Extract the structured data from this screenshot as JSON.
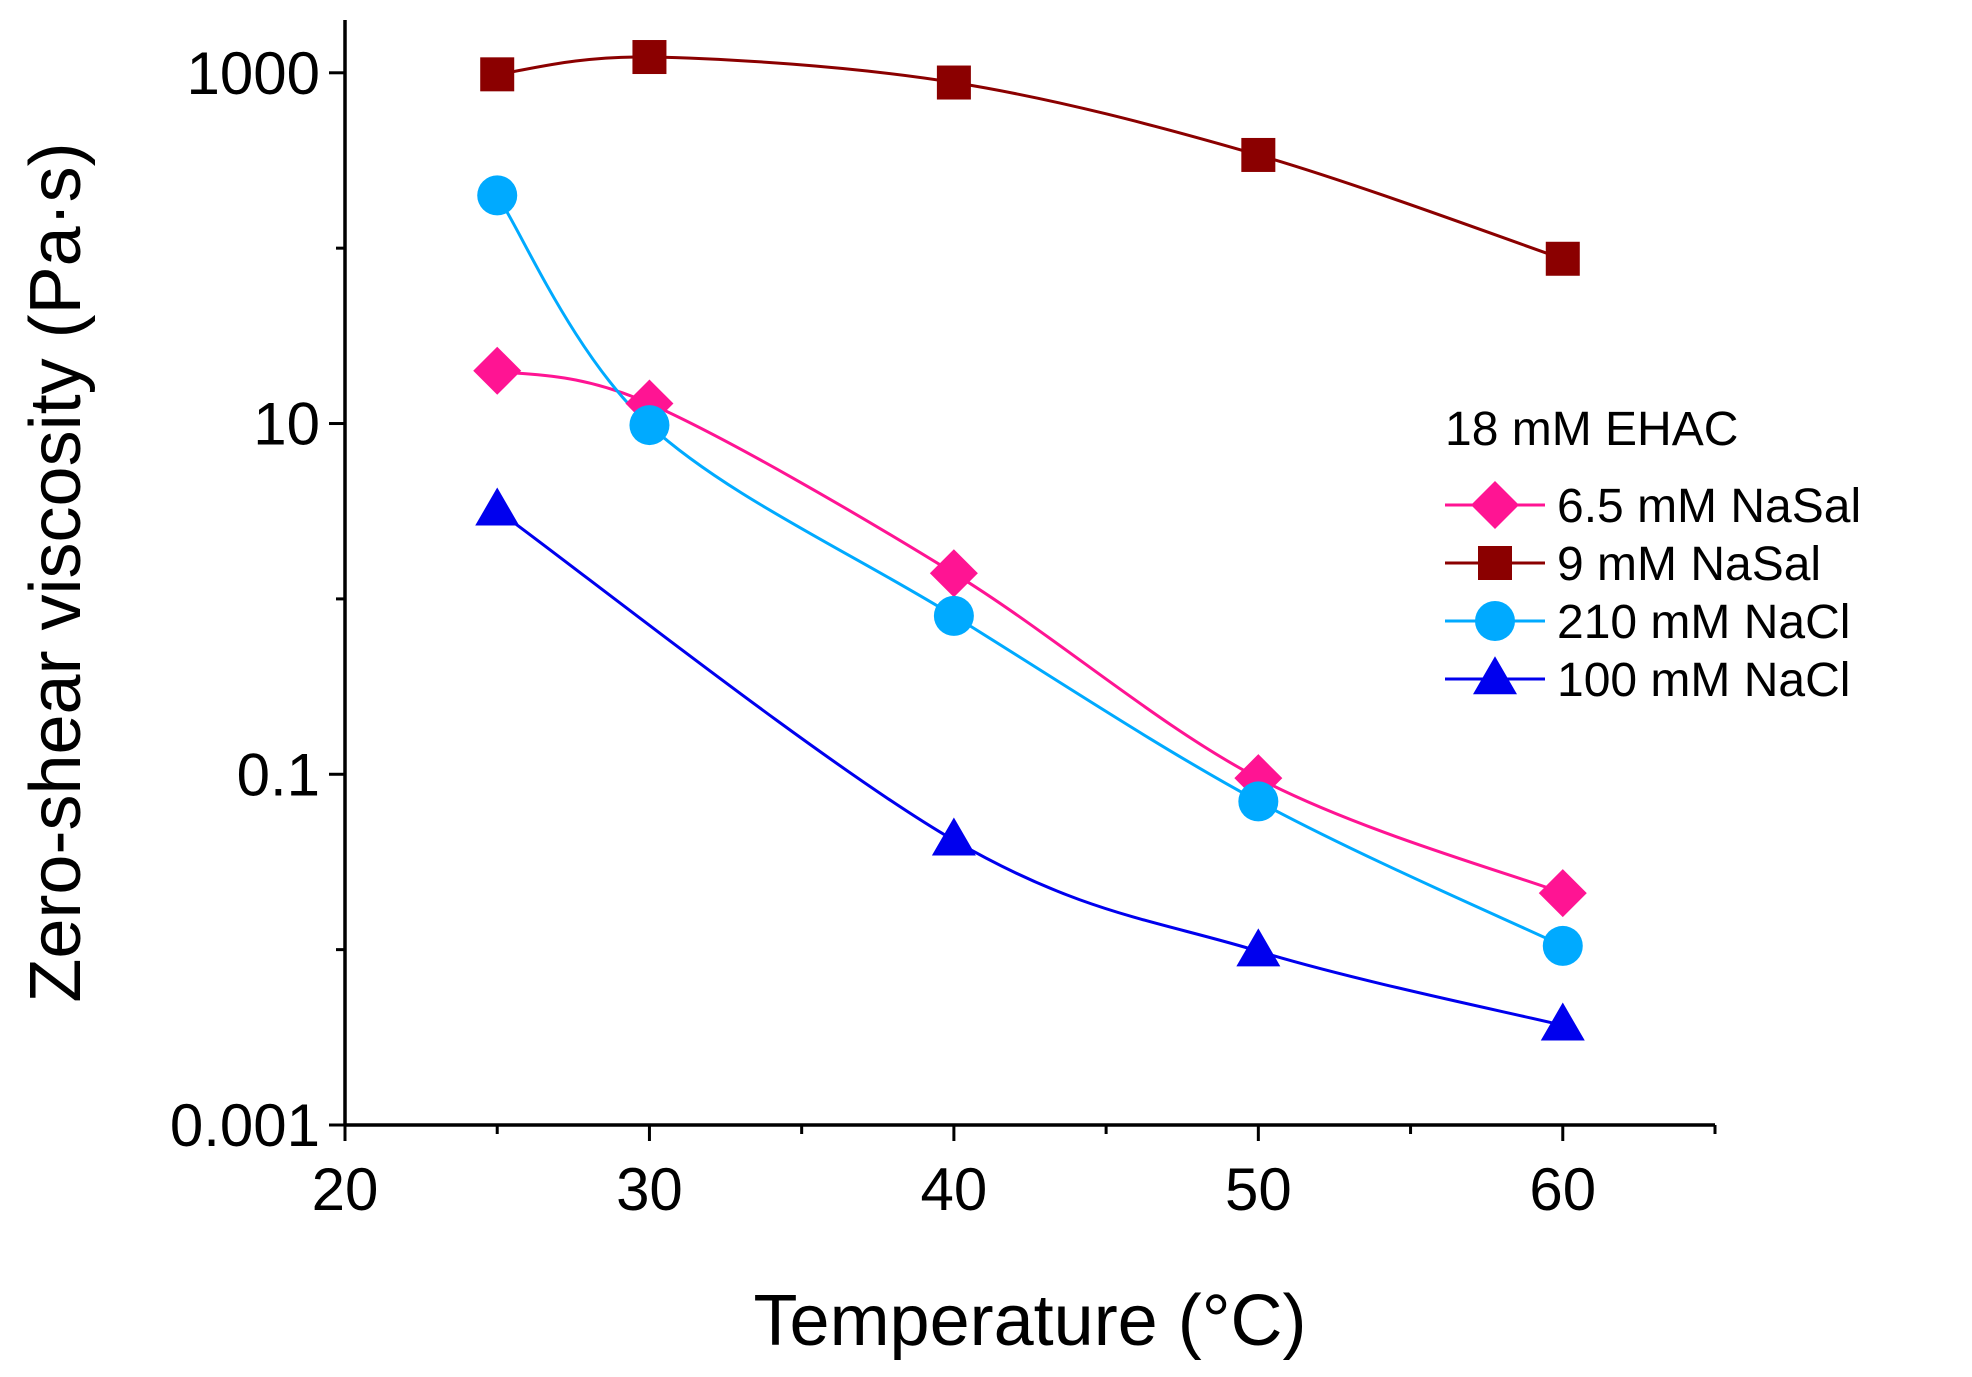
{
  "chart_data": {
    "type": "line",
    "title": "",
    "xlabel": "Temperature (°C)",
    "ylabel": "Zero-shear viscosity (Pa·s)",
    "xlim": [
      20,
      65
    ],
    "ylim": [
      0.001,
      2000
    ],
    "yscale": "log",
    "xticks": [
      20,
      30,
      40,
      50,
      60
    ],
    "xtick_labels": [
      "20",
      "30",
      "40",
      "50",
      "60"
    ],
    "yticks": [
      0.001,
      0.1,
      10,
      1000
    ],
    "ytick_labels": [
      "0.001",
      "0.1",
      "10",
      "1000"
    ],
    "grid": false,
    "legend_title": "18 mM EHAC",
    "legend_position": "right",
    "series": [
      {
        "name": "6.5 mM NaSal",
        "color": "#ff1493",
        "marker": "diamond",
        "x": [
          25,
          30,
          40,
          50,
          60
        ],
        "values": [
          20,
          13,
          1.4,
          0.095,
          0.021
        ]
      },
      {
        "name": "9 mM NaSal",
        "color": "#8b0000",
        "marker": "square",
        "x": [
          25,
          30,
          40,
          50,
          60
        ],
        "values": [
          980,
          1230,
          880,
          340,
          87
        ]
      },
      {
        "name": "210 mM NaCl",
        "color": "#00aaff",
        "marker": "circle",
        "x": [
          25,
          30,
          40,
          50,
          60
        ],
        "values": [
          200,
          9.8,
          0.8,
          0.07,
          0.0105
        ]
      },
      {
        "name": "100 mM NaCl",
        "color": "#0000ee",
        "marker": "triangle",
        "x": [
          25,
          30,
          40,
          50,
          60
        ],
        "values": [
          3.2,
          null,
          0.042,
          0.0098,
          0.0037
        ]
      }
    ]
  }
}
